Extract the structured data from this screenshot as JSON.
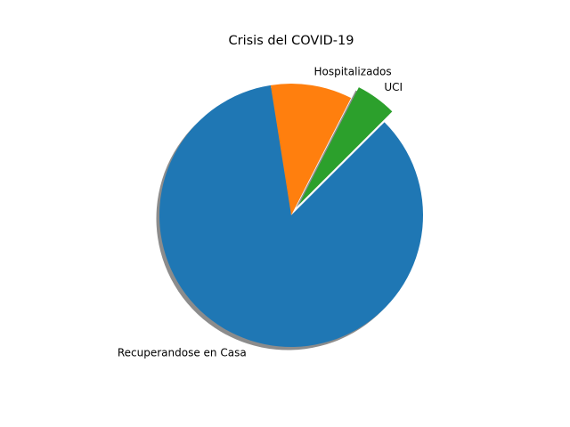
{
  "chart_data": {
    "type": "pie",
    "title": "Crisis del COVID-19",
    "categories": [
      "UCI",
      "Hospitalizados",
      "Recuperandose en Casa"
    ],
    "values": [
      5,
      10,
      85
    ],
    "colors": [
      "#2ca02c",
      "#ff7f0e",
      "#1f77b4"
    ],
    "exploded": [
      true,
      false,
      false
    ],
    "shadow": true,
    "start_angle_deg": 45,
    "direction": "counterclockwise",
    "legend": "none"
  }
}
